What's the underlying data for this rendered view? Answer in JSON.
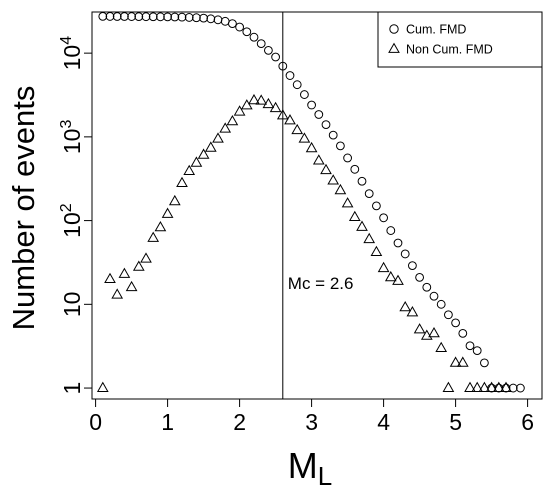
{
  "chart_data": {
    "type": "scatter",
    "xlabel": "M",
    "xlabel_sub": "L",
    "ylabel": "Number of events",
    "y_scale": "log",
    "xlim": [
      -0.05,
      6.2
    ],
    "ylim": [
      0.74,
      31000
    ],
    "x_ticks": [
      0,
      1,
      2,
      3,
      4,
      5,
      6
    ],
    "y_ticks": [
      {
        "value": 1,
        "label": "1"
      },
      {
        "value": 10,
        "label": "10"
      },
      {
        "value": 100,
        "label": "10",
        "exp": "2"
      },
      {
        "value": 1000,
        "label": "10",
        "exp": "3"
      },
      {
        "value": 10000,
        "label": "10",
        "exp": "4"
      }
    ],
    "grid": false,
    "legend_position": "top-right",
    "vline": {
      "x": 2.6,
      "label": "Mc = 2.6"
    },
    "series": [
      {
        "name": "Cum. FMD",
        "marker": "circle",
        "points": [
          [
            0.1,
            27500
          ],
          [
            0.2,
            27450
          ],
          [
            0.3,
            27400
          ],
          [
            0.4,
            27380
          ],
          [
            0.5,
            27350
          ],
          [
            0.6,
            27300
          ],
          [
            0.7,
            27250
          ],
          [
            0.8,
            27200
          ],
          [
            0.9,
            27150
          ],
          [
            1.0,
            27100
          ],
          [
            1.1,
            27000
          ],
          [
            1.2,
            26900
          ],
          [
            1.3,
            26700
          ],
          [
            1.4,
            26500
          ],
          [
            1.5,
            26200
          ],
          [
            1.6,
            25700
          ],
          [
            1.7,
            25000
          ],
          [
            1.8,
            24000
          ],
          [
            1.9,
            22500
          ],
          [
            2.0,
            20500
          ],
          [
            2.1,
            18000
          ],
          [
            2.2,
            15500
          ],
          [
            2.3,
            13000
          ],
          [
            2.4,
            10800
          ],
          [
            2.5,
            9000
          ],
          [
            2.6,
            7000
          ],
          [
            2.7,
            5400
          ],
          [
            2.8,
            4200
          ],
          [
            2.9,
            3200
          ],
          [
            3.0,
            2400
          ],
          [
            3.1,
            1850
          ],
          [
            3.2,
            1400
          ],
          [
            3.3,
            1050
          ],
          [
            3.4,
            780
          ],
          [
            3.5,
            560
          ],
          [
            3.6,
            410
          ],
          [
            3.7,
            295
          ],
          [
            3.8,
            210
          ],
          [
            3.9,
            150
          ],
          [
            4.0,
            108
          ],
          [
            4.1,
            76
          ],
          [
            4.2,
            54
          ],
          [
            4.3,
            40
          ],
          [
            4.4,
            29
          ],
          [
            4.5,
            21
          ],
          [
            4.6,
            16
          ],
          [
            4.7,
            12.5
          ],
          [
            4.8,
            10
          ],
          [
            4.9,
            7.5
          ],
          [
            5.0,
            6.0
          ],
          [
            5.1,
            4.5
          ],
          [
            5.2,
            3.2
          ],
          [
            5.3,
            2.8
          ],
          [
            5.4,
            2.0
          ],
          [
            5.5,
            1.0
          ],
          [
            5.6,
            1.0
          ],
          [
            5.7,
            1.0
          ],
          [
            5.8,
            1.0
          ],
          [
            5.9,
            1.0
          ]
        ]
      },
      {
        "name": "Non Cum. FMD",
        "marker": "triangle",
        "points": [
          [
            0.1,
            1.0
          ],
          [
            0.2,
            20
          ],
          [
            0.3,
            13
          ],
          [
            0.4,
            23
          ],
          [
            0.5,
            16
          ],
          [
            0.6,
            28
          ],
          [
            0.7,
            35
          ],
          [
            0.8,
            62
          ],
          [
            0.9,
            83
          ],
          [
            1.0,
            120
          ],
          [
            1.1,
            170
          ],
          [
            1.2,
            280
          ],
          [
            1.3,
            390
          ],
          [
            1.4,
            490
          ],
          [
            1.5,
            610
          ],
          [
            1.6,
            740
          ],
          [
            1.7,
            950
          ],
          [
            1.8,
            1250
          ],
          [
            1.9,
            1530
          ],
          [
            2.0,
            2000
          ],
          [
            2.1,
            2370
          ],
          [
            2.2,
            2730
          ],
          [
            2.3,
            2700
          ],
          [
            2.4,
            2450
          ],
          [
            2.5,
            2200
          ],
          [
            2.6,
            1800
          ],
          [
            2.7,
            1570
          ],
          [
            2.8,
            1200
          ],
          [
            2.9,
            950
          ],
          [
            3.0,
            730
          ],
          [
            3.1,
            520
          ],
          [
            3.2,
            400
          ],
          [
            3.3,
            300
          ],
          [
            3.4,
            230
          ],
          [
            3.5,
            160
          ],
          [
            3.6,
            110
          ],
          [
            3.7,
            84
          ],
          [
            3.8,
            60
          ],
          [
            3.9,
            42
          ],
          [
            4.0,
            27
          ],
          [
            4.1,
            21
          ],
          [
            4.2,
            19
          ],
          [
            4.3,
            9.2
          ],
          [
            4.4,
            8.0
          ],
          [
            4.5,
            5.0
          ],
          [
            4.6,
            4.2
          ],
          [
            4.7,
            4.5
          ],
          [
            4.8,
            3.0
          ],
          [
            4.9,
            1.0
          ],
          [
            5.0,
            2.0
          ],
          [
            5.1,
            2.0
          ],
          [
            5.2,
            1.0
          ],
          [
            5.3,
            1.0
          ],
          [
            5.4,
            1.0
          ],
          [
            5.5,
            1.0
          ],
          [
            5.6,
            1.0
          ],
          [
            5.7,
            1.0
          ]
        ]
      }
    ]
  }
}
